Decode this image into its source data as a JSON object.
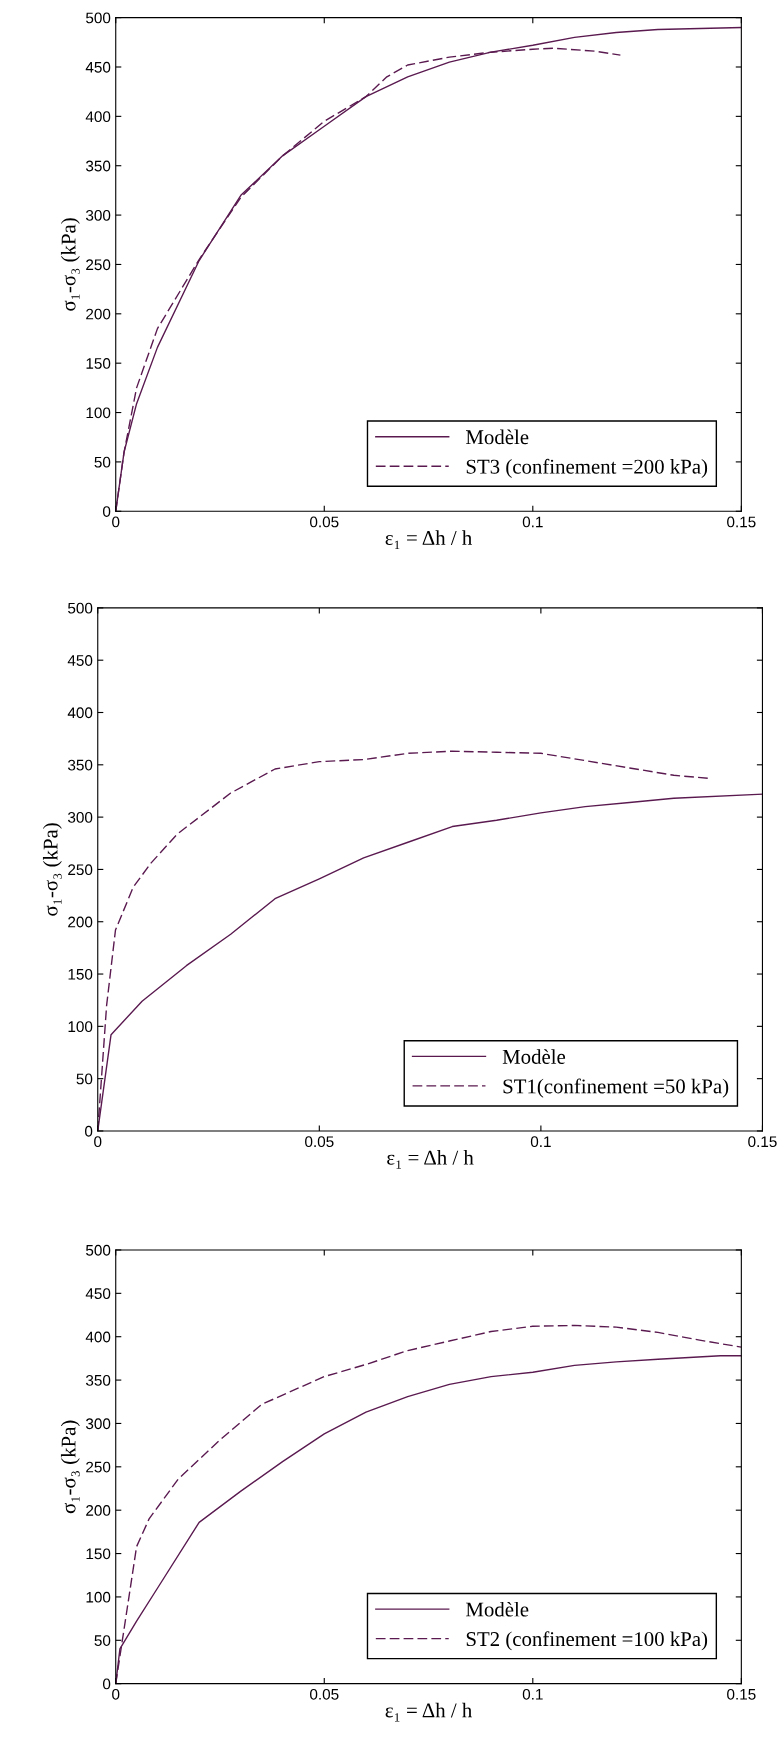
{
  "chart_data": [
    {
      "type": "line",
      "xlabel": "ε₁ = Δh / h",
      "ylabel": "σ₁-σ₃ (kPa)",
      "xlim": [
        0,
        0.15
      ],
      "ylim": [
        0,
        500
      ],
      "xticks": [
        0,
        0.05,
        0.1,
        0.15
      ],
      "yticks": [
        0,
        50,
        100,
        150,
        200,
        250,
        300,
        350,
        400,
        450,
        500
      ],
      "grid": false,
      "legend": "bottom right",
      "series": [
        {
          "name": "Modèle",
          "color": "#5a1a50",
          "line_style": "solid",
          "x": [
            0,
            0.002,
            0.005,
            0.01,
            0.02,
            0.03,
            0.04,
            0.05,
            0.06,
            0.07,
            0.08,
            0.09,
            0.1,
            0.11,
            0.12,
            0.13,
            0.15
          ],
          "values": [
            0,
            60,
            109,
            166,
            254,
            320,
            360,
            390,
            420,
            440,
            455,
            465,
            472,
            480,
            485,
            488,
            490
          ]
        },
        {
          "name": "ST3 (confinement =200 kPa)",
          "color": "#5a1a50",
          "line_style": "dashed",
          "x": [
            0,
            0.002,
            0.005,
            0.01,
            0.02,
            0.03,
            0.04,
            0.05,
            0.06,
            0.065,
            0.07,
            0.08,
            0.09,
            0.1,
            0.105,
            0.115,
            0.121
          ],
          "values": [
            0,
            60,
            125,
            185,
            255,
            318,
            360,
            395,
            420,
            440,
            452,
            460,
            465,
            468,
            469,
            466,
            462
          ]
        }
      ]
    },
    {
      "type": "line",
      "xlabel": "ε₁ = Δh / h",
      "ylabel": "σ₁-σ₃ (kPa)",
      "xlim": [
        0,
        0.15
      ],
      "ylim": [
        0,
        500
      ],
      "xticks": [
        0,
        0.05,
        0.1,
        0.15
      ],
      "yticks": [
        0,
        50,
        100,
        150,
        200,
        250,
        300,
        350,
        400,
        450,
        500
      ],
      "grid": false,
      "legend": "bottom right",
      "series": [
        {
          "name": "Modèle",
          "color": "#5a1a50",
          "line_style": "solid",
          "x": [
            0,
            0.003,
            0.01,
            0.02,
            0.03,
            0.04,
            0.05,
            0.06,
            0.07,
            0.08,
            0.09,
            0.1,
            0.11,
            0.12,
            0.13,
            0.15
          ],
          "values": [
            0,
            92,
            124,
            158,
            188,
            222,
            241,
            261,
            276,
            291,
            297,
            304,
            310,
            314,
            318,
            322
          ]
        },
        {
          "name": "ST1(confinement =50 kPa)",
          "color": "#5a1a50",
          "line_style": "dashed",
          "x": [
            0,
            0.002,
            0.004,
            0.008,
            0.012,
            0.018,
            0.03,
            0.04,
            0.05,
            0.06,
            0.07,
            0.08,
            0.09,
            0.1,
            0.11,
            0.12,
            0.13,
            0.138
          ],
          "values": [
            0,
            120,
            192,
            233,
            256,
            284,
            323,
            346,
            353,
            355,
            361,
            363,
            362,
            361,
            354,
            347,
            340,
            337
          ]
        }
      ]
    },
    {
      "type": "line",
      "xlabel": "ε₁ = Δh / h",
      "ylabel": "σ₁-σ₃ (kPa)",
      "xlim": [
        0,
        0.15
      ],
      "ylim": [
        0,
        500
      ],
      "xticks": [
        0,
        0.05,
        0.1,
        0.15
      ],
      "yticks": [
        0,
        50,
        100,
        150,
        200,
        250,
        300,
        350,
        400,
        450,
        500
      ],
      "grid": false,
      "legend": "bottom right",
      "series": [
        {
          "name": "Modèle",
          "color": "#5a1a50",
          "line_style": "solid",
          "x": [
            0,
            0.001,
            0.005,
            0.01,
            0.02,
            0.03,
            0.04,
            0.05,
            0.06,
            0.07,
            0.08,
            0.09,
            0.1,
            0.11,
            0.12,
            0.13,
            0.145,
            0.15
          ],
          "values": [
            0,
            40,
            72,
            110,
            186,
            222,
            256,
            288,
            313,
            331,
            345,
            354,
            359,
            367,
            371,
            374,
            378,
            378
          ]
        },
        {
          "name": "ST2 (confinement =100 kPa)",
          "color": "#5a1a50",
          "line_style": "dashed",
          "x": [
            0,
            0.002,
            0.005,
            0.008,
            0.015,
            0.025,
            0.035,
            0.05,
            0.06,
            0.07,
            0.08,
            0.09,
            0.1,
            0.11,
            0.12,
            0.13,
            0.14,
            0.15
          ],
          "values": [
            0,
            63,
            158,
            190,
            236,
            281,
            322,
            354,
            368,
            384,
            395,
            406,
            412,
            413,
            411,
            405,
            396,
            388
          ]
        }
      ]
    }
  ]
}
